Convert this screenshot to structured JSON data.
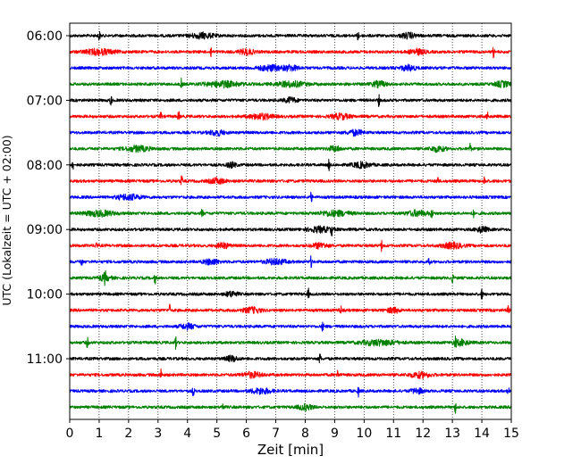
{
  "chart_data": {
    "type": "line",
    "xlabel": "Zeit  [min]",
    "ylabel": "UTC (Lokalzeit = UTC + 02:00)",
    "xlim": [
      0,
      15
    ],
    "x_ticks": [
      0,
      1,
      2,
      3,
      4,
      5,
      6,
      7,
      8,
      9,
      10,
      11,
      12,
      13,
      14,
      15
    ],
    "y_tick_labels": [
      "06:00",
      "07:00",
      "08:00",
      "09:00",
      "10:00",
      "11:00"
    ],
    "grid": "vertical dotted lines at each minute",
    "colors": [
      "#000000",
      "#ff0000",
      "#0000ff",
      "#008000"
    ],
    "traces": [
      {
        "start": "05:45",
        "color": "#000000",
        "spikes": [
          1.0,
          9.8
        ],
        "bursts": [
          [
            4.5,
            0.8
          ],
          [
            11.5,
            0.5
          ]
        ]
      },
      {
        "start": "06:00",
        "color": "#ff0000",
        "spikes": [
          4.8,
          14.4
        ],
        "bursts": [
          [
            1.0,
            1.0
          ],
          [
            6.0,
            0.5
          ],
          [
            11.8,
            0.5
          ]
        ]
      },
      {
        "start": "06:15",
        "color": "#0000ff",
        "spikes": [],
        "bursts": [
          [
            6.8,
            0.8
          ],
          [
            7.5,
            0.5
          ],
          [
            11.5,
            0.5
          ]
        ]
      },
      {
        "start": "06:30",
        "color": "#008000",
        "spikes": [
          3.8
        ],
        "bursts": [
          [
            5.2,
            1.2
          ],
          [
            7.5,
            1.0
          ],
          [
            10.5,
            0.5
          ],
          [
            14.7,
            0.5
          ]
        ]
      },
      {
        "start": "06:45",
        "color": "#000000",
        "spikes": [
          1.4,
          10.5
        ],
        "bursts": [
          [
            7.5,
            0.4
          ]
        ]
      },
      {
        "start": "07:00",
        "color": "#ff0000",
        "spikes": [
          3.1,
          3.7,
          14.2
        ],
        "bursts": [
          [
            6.5,
            0.8
          ],
          [
            9.2,
            0.6
          ]
        ]
      },
      {
        "start": "07:15",
        "color": "#0000ff",
        "spikes": [],
        "bursts": [
          [
            5.0,
            0.5
          ],
          [
            9.7,
            0.5
          ]
        ]
      },
      {
        "start": "07:30",
        "color": "#008000",
        "spikes": [
          13.6
        ],
        "bursts": [
          [
            2.3,
            0.8
          ],
          [
            9.0,
            0.4
          ],
          [
            12.5,
            0.5
          ]
        ]
      },
      {
        "start": "07:45",
        "color": "#000000",
        "spikes": [
          0.1,
          8.8
        ],
        "bursts": [
          [
            5.5,
            0.3
          ],
          [
            9.9,
            0.6
          ]
        ]
      },
      {
        "start": "08:00",
        "color": "#ff0000",
        "spikes": [
          3.8,
          12.5,
          14.1
        ],
        "bursts": [
          [
            5.0,
            0.5
          ]
        ]
      },
      {
        "start": "08:15",
        "color": "#0000ff",
        "spikes": [
          8.2
        ],
        "bursts": [
          [
            2.0,
            0.8
          ]
        ]
      },
      {
        "start": "08:30",
        "color": "#008000",
        "spikes": [
          4.5,
          12.3,
          13.7
        ],
        "bursts": [
          [
            1.0,
            1.0
          ],
          [
            9.0,
            1.0
          ],
          [
            11.8,
            0.7
          ]
        ]
      },
      {
        "start": "08:45",
        "color": "#000000",
        "spikes": [
          8.9
        ],
        "bursts": [
          [
            8.5,
            0.8
          ],
          [
            14.0,
            0.4
          ]
        ]
      },
      {
        "start": "09:00",
        "color": "#ff0000",
        "spikes": [
          0.9,
          10.6
        ],
        "bursts": [
          [
            5.2,
            0.4
          ],
          [
            8.5,
            0.5
          ],
          [
            13.0,
            0.7
          ]
        ]
      },
      {
        "start": "09:15",
        "color": "#0000ff",
        "spikes": [
          0.4,
          8.2,
          12.2
        ],
        "bursts": [
          [
            4.8,
            0.5
          ],
          [
            7.0,
            0.7
          ]
        ]
      },
      {
        "start": "09:30",
        "color": "#008000",
        "spikes": [
          1.2,
          2.9,
          13.0
        ],
        "bursts": [
          [
            1.2,
            0.4
          ]
        ]
      },
      {
        "start": "09:45",
        "color": "#000000",
        "spikes": [
          8.1,
          14.0
        ],
        "bursts": [
          [
            5.5,
            0.4
          ]
        ]
      },
      {
        "start": "10:00",
        "color": "#ff0000",
        "spikes": [
          3.4,
          9.2,
          14.9
        ],
        "bursts": [
          [
            6.2,
            0.6
          ],
          [
            11.0,
            0.4
          ]
        ]
      },
      {
        "start": "10:15",
        "color": "#0000ff",
        "spikes": [
          8.6
        ],
        "bursts": [
          [
            4.0,
            0.5
          ]
        ]
      },
      {
        "start": "10:30",
        "color": "#008000",
        "spikes": [
          0.6,
          3.6,
          13.1
        ],
        "bursts": [
          [
            10.5,
            1.2
          ],
          [
            13.3,
            0.5
          ]
        ]
      },
      {
        "start": "10:45",
        "color": "#000000",
        "spikes": [
          8.5
        ],
        "bursts": [
          [
            5.5,
            0.4
          ]
        ]
      },
      {
        "start": "11:00",
        "color": "#ff0000",
        "spikes": [
          3.1,
          9.1
        ],
        "bursts": [
          [
            6.2,
            0.6
          ],
          [
            11.9,
            0.7
          ]
        ]
      },
      {
        "start": "11:15",
        "color": "#0000ff",
        "spikes": [
          4.2,
          9.8,
          14.9
        ],
        "bursts": [
          [
            6.5,
            0.7
          ],
          [
            11.8,
            0.4
          ]
        ]
      },
      {
        "start": "11:30",
        "color": "#008000",
        "spikes": [
          5.2,
          13.1
        ],
        "bursts": [
          [
            8.0,
            0.5
          ]
        ]
      }
    ]
  }
}
